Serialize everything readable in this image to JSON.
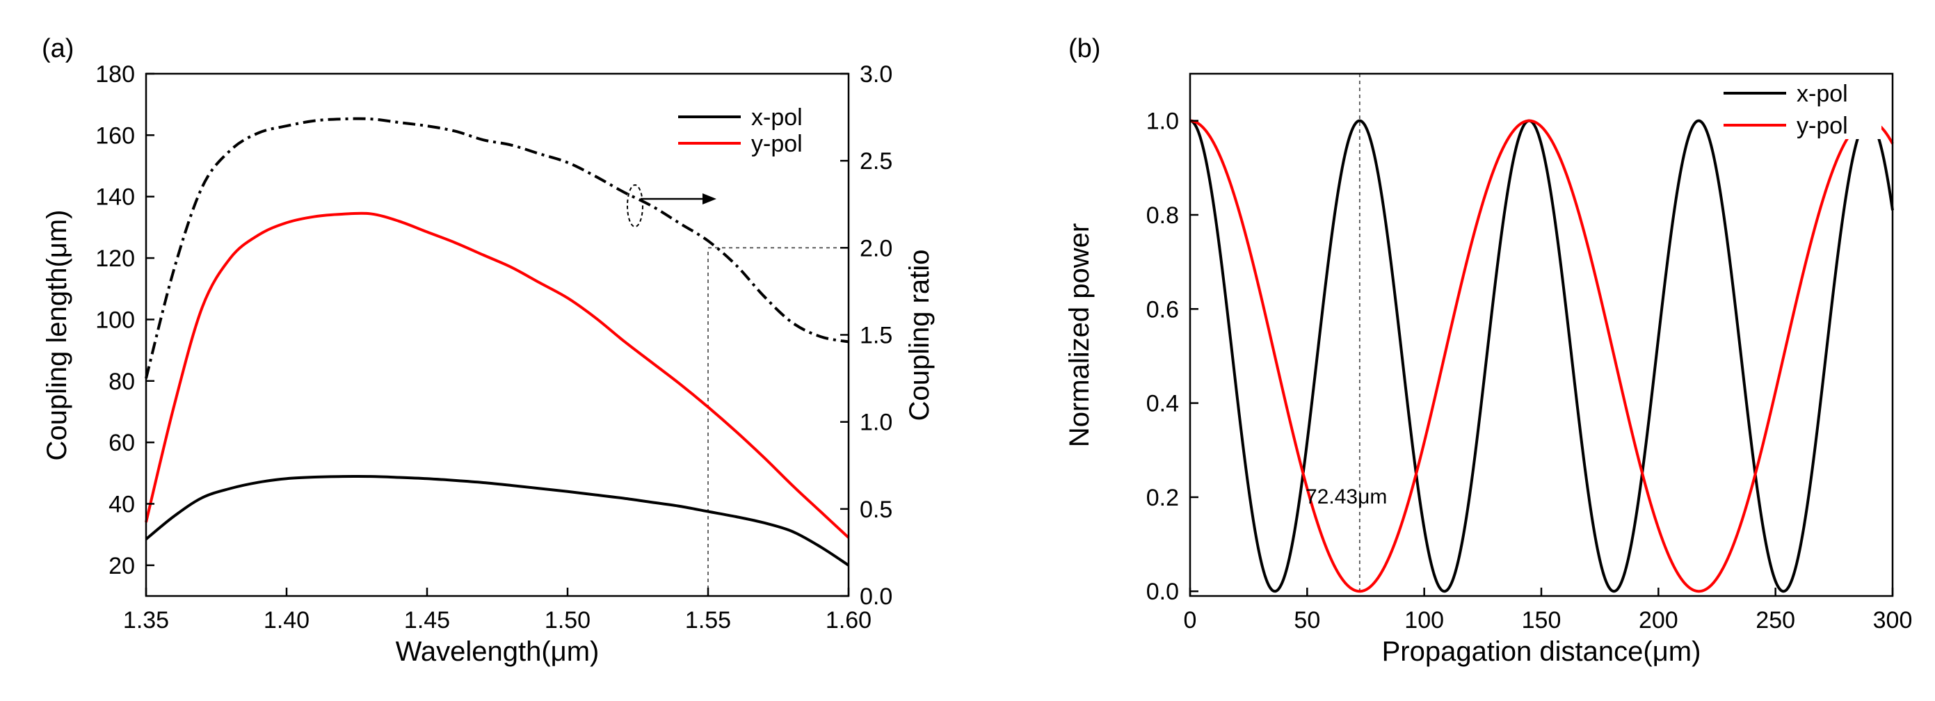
{
  "chart_data": [
    {
      "panel_label": "(a)",
      "type": "line",
      "xlabel": "Wavelength(μm)",
      "ylabel": "Coupling length(μm)",
      "y2label": "Coupling ratio",
      "xlim": [
        1.35,
        1.6
      ],
      "ylim": [
        10,
        180
      ],
      "y2lim": [
        0,
        3.0
      ],
      "xticks": [
        "1.35",
        "1.40",
        "1.45",
        "1.50",
        "1.55",
        "1.60"
      ],
      "yticks": [
        "20",
        "40",
        "60",
        "80",
        "100",
        "120",
        "140",
        "160",
        "180"
      ],
      "y2ticks": [
        "0.0",
        "0.5",
        "1.0",
        "1.5",
        "2.0",
        "2.5",
        "3.0"
      ],
      "legend": [
        "x-pol",
        "y-pol"
      ],
      "series": [
        {
          "name": "x-pol",
          "axis": "left",
          "color": "#000000",
          "style": "solid",
          "x": [
            1.35,
            1.36,
            1.37,
            1.38,
            1.39,
            1.4,
            1.41,
            1.42,
            1.43,
            1.44,
            1.45,
            1.46,
            1.47,
            1.48,
            1.49,
            1.5,
            1.51,
            1.52,
            1.53,
            1.54,
            1.55,
            1.56,
            1.57,
            1.58,
            1.59,
            1.6
          ],
          "y": [
            28.5,
            36,
            42,
            45,
            47,
            48.2,
            48.7,
            48.9,
            48.9,
            48.6,
            48.2,
            47.6,
            46.9,
            46,
            45,
            44,
            42.9,
            41.8,
            40.5,
            39.2,
            37.5,
            35.8,
            33.8,
            31,
            26,
            20
          ]
        },
        {
          "name": "y-pol",
          "axis": "left",
          "color": "#ff0000",
          "style": "solid",
          "x": [
            1.35,
            1.36,
            1.37,
            1.38,
            1.39,
            1.4,
            1.41,
            1.42,
            1.43,
            1.44,
            1.45,
            1.46,
            1.47,
            1.48,
            1.49,
            1.5,
            1.51,
            1.52,
            1.53,
            1.54,
            1.55,
            1.56,
            1.57,
            1.58,
            1.59,
            1.6
          ],
          "y": [
            34,
            72,
            104,
            120,
            127.5,
            131.5,
            133.5,
            134.3,
            134.4,
            132,
            128.5,
            125,
            121,
            117,
            112,
            107,
            100.5,
            93,
            86,
            79,
            71.5,
            63.5,
            55,
            46,
            37.5,
            29
          ]
        },
        {
          "name": "coupling ratio",
          "axis": "right",
          "color": "#000000",
          "style": "dashdot",
          "x": [
            1.35,
            1.36,
            1.37,
            1.38,
            1.39,
            1.4,
            1.41,
            1.42,
            1.43,
            1.44,
            1.45,
            1.46,
            1.47,
            1.48,
            1.49,
            1.5,
            1.51,
            1.52,
            1.53,
            1.54,
            1.55,
            1.56,
            1.57,
            1.58,
            1.59,
            1.6
          ],
          "y": [
            1.25,
            1.88,
            2.35,
            2.56,
            2.66,
            2.7,
            2.73,
            2.74,
            2.74,
            2.72,
            2.7,
            2.67,
            2.62,
            2.59,
            2.54,
            2.49,
            2.41,
            2.32,
            2.24,
            2.14,
            2.04,
            1.9,
            1.72,
            1.57,
            1.49,
            1.46
          ]
        }
      ],
      "annotations": [
        {
          "type": "vline",
          "x": 1.55,
          "y_from": 10,
          "y_to": 123
        },
        {
          "type": "hline",
          "y2": 2.0,
          "x_from": 1.55,
          "x_to": 1.6
        },
        {
          "type": "ellipse_arrow",
          "x": 1.5225,
          "y2": 2.25,
          "direction": "right"
        }
      ]
    },
    {
      "panel_label": "(b)",
      "type": "line",
      "xlabel": "Propagation distance(μm)",
      "ylabel": "Normalized power",
      "xlim": [
        0,
        300
      ],
      "ylim": [
        -0.01,
        1.1
      ],
      "xticks": [
        "0",
        "50",
        "100",
        "150",
        "200",
        "250",
        "300"
      ],
      "yticks": [
        "0.0",
        "0.2",
        "0.4",
        "0.6",
        "0.8",
        "1.0"
      ],
      "legend": [
        "x-pol",
        "y-pol"
      ],
      "series": [
        {
          "name": "x-pol",
          "color": "#000000",
          "function": "cos^2(pi*z/(2*Lc))",
          "coupling_length": 36.2,
          "period": 72.43
        },
        {
          "name": "y-pol",
          "color": "#ff0000",
          "function": "cos^2(pi*z/(2*Lc))",
          "coupling_length": 72.43,
          "period": 144.86
        }
      ],
      "annotations": [
        {
          "type": "vline",
          "x": 72.43,
          "label": "72.43μm"
        }
      ]
    }
  ]
}
